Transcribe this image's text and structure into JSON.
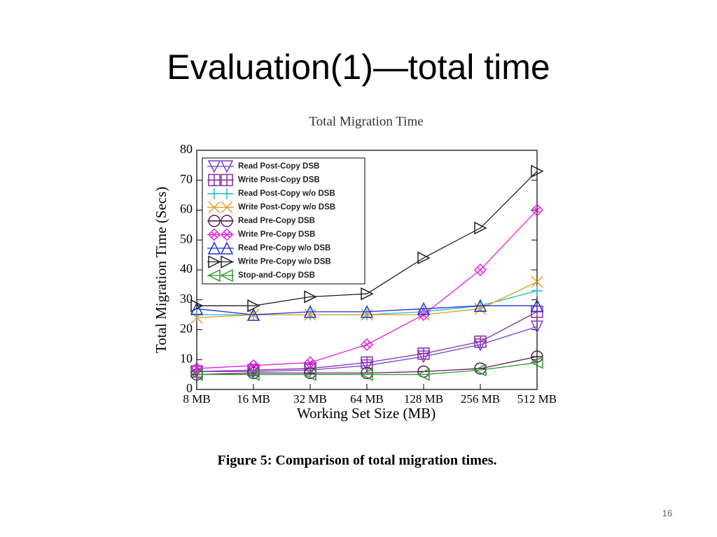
{
  "slide_title": "Evaluation(1)—total time",
  "page_number": "16",
  "chart_data": {
    "type": "line",
    "title": "Total Migration Time",
    "x_label": "Working Set Size (MB)",
    "y_label": "Total Migration Time (Secs)",
    "caption": "Figure 5: Comparison of total migration times.",
    "categories": [
      "8 MB",
      "16 MB",
      "32 MB",
      "64 MB",
      "128 MB",
      "256 MB",
      "512 MB"
    ],
    "ylim": [
      0,
      80
    ],
    "yticks": [
      0,
      10,
      20,
      30,
      40,
      50,
      60,
      70,
      80
    ],
    "legend": "upper left",
    "series": [
      {
        "name": "Read Post-Copy DSB",
        "color": "#7b3fc4",
        "marker": "triangle-down",
        "values": [
          6,
          6,
          6.5,
          8,
          11,
          15,
          21
        ]
      },
      {
        "name": "Write Post-Copy DSB",
        "color": "#8a2ba8",
        "marker": "square-plus",
        "values": [
          6,
          6.5,
          7,
          9,
          12,
          16,
          26
        ]
      },
      {
        "name": "Read Post-Copy w/o DSB",
        "color": "#22b8d8",
        "marker": "plus",
        "values": [
          25,
          25,
          25,
          25,
          26,
          28,
          33
        ]
      },
      {
        "name": "Write Post-Copy w/o DSB",
        "color": "#e89a1c",
        "marker": "x",
        "values": [
          24,
          25,
          25,
          25,
          25,
          27,
          36
        ]
      },
      {
        "name": "Read Pre-Copy DSB",
        "color": "#5a1a5a",
        "marker": "circle-bar",
        "values": [
          5,
          5.5,
          5.5,
          5.5,
          6,
          7,
          11
        ]
      },
      {
        "name": "Write Pre-Copy DSB",
        "color": "#e020e0",
        "marker": "diamond-x",
        "values": [
          7,
          8,
          9,
          15,
          25,
          40,
          60
        ]
      },
      {
        "name": "Read Pre-Copy w/o DSB",
        "color": "#2030d0",
        "marker": "triangle-up",
        "values": [
          27,
          25,
          26,
          26,
          27,
          28,
          28
        ]
      },
      {
        "name": "Write Pre-Copy w/o DSB",
        "color": "#202020",
        "marker": "triangle-right",
        "values": [
          28,
          28,
          31,
          32,
          44,
          54,
          73
        ]
      },
      {
        "name": "Stop-and-Copy DSB",
        "color": "#2a9a2a",
        "marker": "triangle-left",
        "values": [
          5,
          5,
          5,
          5,
          5,
          6.5,
          9
        ]
      }
    ]
  }
}
